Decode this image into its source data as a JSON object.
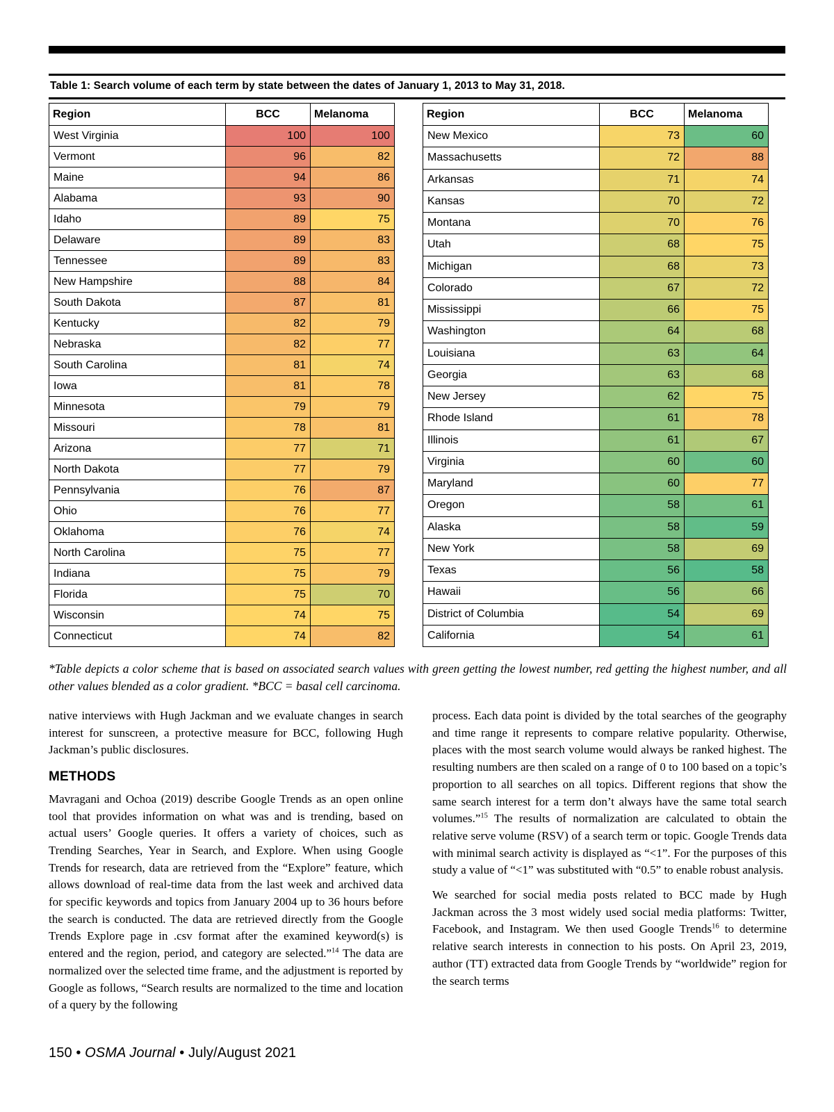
{
  "table_caption": "Table 1: Search volume of each term by state between the dates of January 1, 2013 to May 31, 2018.",
  "table": {
    "headers": [
      "Region",
      "BCC",
      "Melanoma"
    ],
    "color_scale": {
      "min_color": "#57BB8A",
      "mid_color": "#FFD666",
      "max_color": "#E67C73",
      "bcc_stats": {
        "min": 54,
        "mid": 74,
        "max": 100
      },
      "melanoma_stats": {
        "min": 58,
        "mid": 75,
        "max": 100
      }
    },
    "left_rows": [
      [
        "West Virginia",
        100,
        100
      ],
      [
        "Vermont",
        96,
        82
      ],
      [
        "Maine",
        94,
        86
      ],
      [
        "Alabama",
        93,
        90
      ],
      [
        "Idaho",
        89,
        75
      ],
      [
        "Delaware",
        89,
        83
      ],
      [
        "Tennessee",
        89,
        83
      ],
      [
        "New Hampshire",
        88,
        84
      ],
      [
        "South Dakota",
        87,
        81
      ],
      [
        "Kentucky",
        82,
        79
      ],
      [
        "Nebraska",
        82,
        77
      ],
      [
        "South Carolina",
        81,
        74
      ],
      [
        "Iowa",
        81,
        78
      ],
      [
        "Minnesota",
        79,
        79
      ],
      [
        "Missouri",
        78,
        81
      ],
      [
        "Arizona",
        77,
        71
      ],
      [
        "North Dakota",
        77,
        79
      ],
      [
        "Pennsylvania",
        76,
        87
      ],
      [
        "Ohio",
        76,
        77
      ],
      [
        "Oklahoma",
        76,
        74
      ],
      [
        "North Carolina",
        75,
        77
      ],
      [
        "Indiana",
        75,
        79
      ],
      [
        "Florida",
        75,
        70
      ],
      [
        "Wisconsin",
        74,
        75
      ],
      [
        "Connecticut",
        74,
        82
      ]
    ],
    "right_rows": [
      [
        "New Mexico",
        73,
        60
      ],
      [
        "Massachusetts",
        72,
        88
      ],
      [
        "Arkansas",
        71,
        74
      ],
      [
        "Kansas",
        70,
        72
      ],
      [
        "Montana",
        70,
        76
      ],
      [
        "Utah",
        68,
        75
      ],
      [
        "Michigan",
        68,
        73
      ],
      [
        "Colorado",
        67,
        72
      ],
      [
        "Mississippi",
        66,
        75
      ],
      [
        "Washington",
        64,
        68
      ],
      [
        "Louisiana",
        63,
        64
      ],
      [
        "Georgia",
        63,
        68
      ],
      [
        "New Jersey",
        62,
        75
      ],
      [
        "Rhode Island",
        61,
        78
      ],
      [
        "Illinois",
        61,
        67
      ],
      [
        "Virginia",
        60,
        60
      ],
      [
        "Maryland",
        60,
        77
      ],
      [
        "Oregon",
        58,
        61
      ],
      [
        "Alaska",
        58,
        59
      ],
      [
        "New York",
        58,
        69
      ],
      [
        "Texas",
        56,
        58
      ],
      [
        "Hawaii",
        56,
        66
      ],
      [
        "District of Columbia",
        54,
        69
      ],
      [
        "California",
        54,
        61
      ]
    ]
  },
  "footnote": "*Table depicts a color scheme that is based on associated search values with green getting the lowest number, red getting the highest number, and all other values blended as a color gradient. *BCC = basal cell carcinoma.",
  "body": {
    "left": {
      "para1": [
        {
          "t": "native interviews with Hugh Jackman and we evaluate changes in search interest for sunscreen, a protective measure for BCC, following Hugh Jackman’s public disclosures."
        }
      ],
      "heading": "METHODS",
      "para2": [
        {
          "t": "Mavragani and Ochoa (2019) describe Google Trends as an open online tool that provides information on what was and is trending, based on actual users’ Google queries. It offers a variety of choices, such as Trending Searches, Year in Search, and Explore. When using Google Trends for research, data are retrieved from the “Explore” feature, which allows download of real-time data from the last week and archived data for specific keywords and topics from January 2004 up to 36 hours before the search is conducted. The data are retrieved directly from the Google Trends Explore page in .csv format after the examined keyword(s) is entered and the region, period, and category are selected.”"
        },
        {
          "sup": "14"
        },
        {
          "t": " The data are normalized over the selected time frame, and the adjustment is reported by Google as follows, “Search results are normalized to the time and location of a query by the following"
        }
      ]
    },
    "right": {
      "para1": [
        {
          "t": "process. Each data point is divided by the total searches of the geography and time range it represents to compare relative popularity. Otherwise, places with the most search volume would always be ranked highest. The resulting numbers are then scaled on a range of 0 to 100 based on a topic’s proportion to all searches on all topics. Different regions that show the same search interest for a term don’t always have the same total search volumes.”"
        },
        {
          "sup": "15"
        },
        {
          "t": " The results of normalization are calculated to obtain the relative serve volume (RSV) of a search term or topic. Google Trends data with minimal search activity is displayed as “<1”. For the purposes of this study a value of  “<1” was substituted with “0.5” to enable robust analysis."
        }
      ],
      "para2": [
        {
          "t": "We searched for social media posts related to BCC made by Hugh Jackman across the 3 most widely used social media platforms: Twitter, Facebook, and Instagram. We then used Google Trends"
        },
        {
          "sup": "16"
        },
        {
          "t": " to determine relative search interests in connection to his posts. On April 23, 2019, author (TT) extracted data from Google Trends by “worldwide” region for the search terms"
        }
      ]
    }
  },
  "footer": [
    {
      "t": "150 • "
    },
    {
      "i": "OSMA Journal"
    },
    {
      "t": " • July/August 2021"
    }
  ]
}
